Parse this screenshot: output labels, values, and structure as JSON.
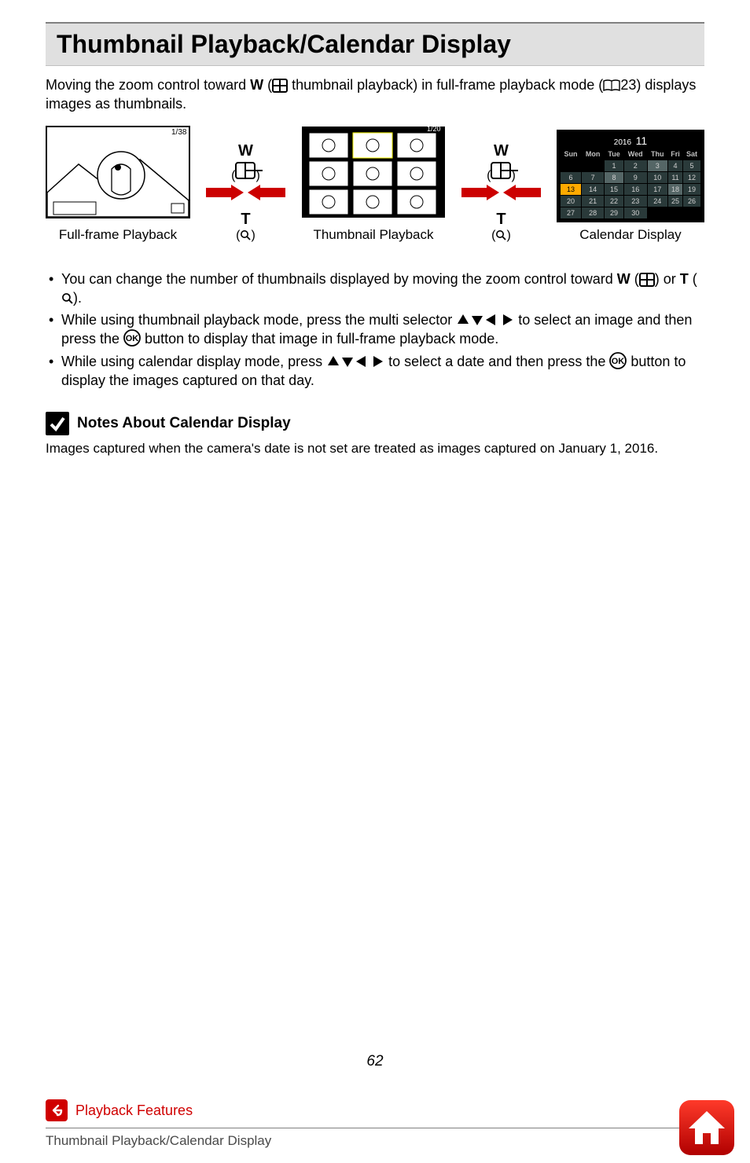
{
  "title": "Thumbnail Playback/Calendar Display",
  "intro_p1": "Moving the zoom control toward ",
  "intro_w": "W",
  "intro_p2": " (",
  "intro_p3": " thumbnail playback) in full-frame playback mode (",
  "intro_ref": "23) displays images as thumbnails.",
  "diagram": {
    "full_frame_label": "Full-frame Playback",
    "thumb_label": "Thumbnail Playback",
    "cal_label": "Calendar Display",
    "w_label": "W",
    "t_label": "T"
  },
  "calendar": {
    "year": "2016",
    "month": "11",
    "days": [
      "Sun",
      "Mon",
      "Tue",
      "Wed",
      "Thu",
      "Fri",
      "Sat"
    ],
    "rows": [
      [
        "",
        "",
        "1",
        "2",
        "3",
        "4",
        "5"
      ],
      [
        "6",
        "7",
        "8",
        "9",
        "10",
        "11",
        "12"
      ],
      [
        "13",
        "14",
        "15",
        "16",
        "17",
        "18",
        "19"
      ],
      [
        "20",
        "21",
        "22",
        "23",
        "24",
        "25",
        "26"
      ],
      [
        "27",
        "28",
        "29",
        "30",
        "",
        "",
        ""
      ]
    ],
    "highlight_cell": "13",
    "thumb_cells": [
      "3",
      "8",
      "18"
    ]
  },
  "bullets": {
    "b1_p1": "You can change the number of thumbnails displayed by moving the zoom control toward ",
    "b1_w": "W",
    "b1_p2": " (",
    "b1_p3": ") or ",
    "b1_t": "T",
    "b1_p4": " (",
    "b1_p5": ").",
    "b2_p1": "While using thumbnail playback mode, press the multi selector ",
    "b2_p2": " to select an image and then press the ",
    "b2_p3": " button to display that image in full-frame playback mode.",
    "b3_p1": "While using calendar display mode, press ",
    "b3_p2": " to select a date and then press the ",
    "b3_p3": " button to display the images captured on that day."
  },
  "notes": {
    "title": "Notes About Calendar Display",
    "body": "Images captured when the camera's date is not set are treated as images captured on January 1, 2016."
  },
  "page_number": "62",
  "footer": {
    "section": "Playback Features",
    "subtitle": "Thumbnail Playback/Calendar Display"
  },
  "colors": {
    "accent_red": "#d00000",
    "arrow_red": "#cc0000",
    "title_bg": "#e0e0e0"
  }
}
